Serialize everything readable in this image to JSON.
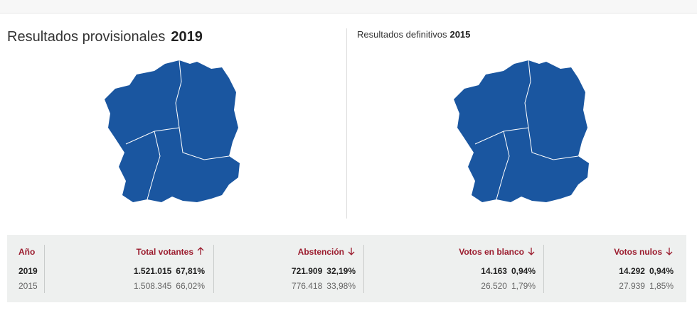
{
  "header": {
    "title": "Resultados provisionales",
    "title_year": "2019",
    "subtitle": "Resultados definitivos",
    "subtitle_year": "2015"
  },
  "table": {
    "columns": [
      "Año",
      "Total votantes",
      "Abstención",
      "Votos en blanco",
      "Votos nulos"
    ],
    "rows": [
      [
        "2019",
        {
          "count": "1.521.015",
          "pct": "67,81%"
        },
        {
          "count": "721.909",
          "pct": "32,19%"
        },
        {
          "count": "14.163",
          "pct": "0,94%"
        },
        {
          "count": "14.292",
          "pct": "0,94%"
        }
      ],
      [
        "2015",
        {
          "count": "1.508.345",
          "pct": "66,02%"
        },
        {
          "count": "776.418",
          "pct": "33,98%"
        },
        {
          "count": "26.520",
          "pct": "1,79%"
        },
        {
          "count": "27.939",
          "pct": "1,85%"
        }
      ]
    ]
  }
}
